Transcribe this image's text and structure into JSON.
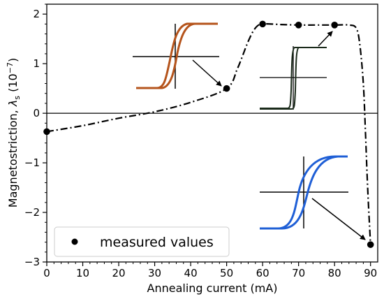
{
  "chart_data": {
    "type": "line",
    "xlabel": "Annealing current (mA)",
    "ylabel_main": "Magnetostriction, ",
    "ylabel_symbol": "λ",
    "ylabel_sub": "s",
    "ylabel_unit_open": " (10",
    "ylabel_unit_exp": "−7",
    "ylabel_unit_close": ")",
    "xlim": [
      0,
      92
    ],
    "ylim": [
      -3,
      2.2
    ],
    "xticks": [
      {
        "value": 0,
        "label": "0"
      },
      {
        "value": 10,
        "label": "10"
      },
      {
        "value": 20,
        "label": "20"
      },
      {
        "value": 30,
        "label": "30"
      },
      {
        "value": 40,
        "label": "40"
      },
      {
        "value": 50,
        "label": "50"
      },
      {
        "value": 60,
        "label": "60"
      },
      {
        "value": 70,
        "label": "70"
      },
      {
        "value": 80,
        "label": "80"
      },
      {
        "value": 90,
        "label": "90"
      }
    ],
    "yticks": [
      {
        "value": -3,
        "label": "−3"
      },
      {
        "value": -2,
        "label": "−2"
      },
      {
        "value": -1,
        "label": "−1"
      },
      {
        "value": 0,
        "label": "0"
      },
      {
        "value": 1,
        "label": "1"
      },
      {
        "value": 2,
        "label": "2"
      }
    ],
    "zero_line": true,
    "grid": false,
    "legend_position": "bottom-left",
    "series": [
      {
        "name": "measured values",
        "style": "markers",
        "color": "#000000",
        "points": [
          [
            0,
            -0.37
          ],
          [
            50,
            0.5
          ],
          [
            60,
            1.8
          ],
          [
            70,
            1.78
          ],
          [
            80,
            1.78
          ],
          [
            90,
            -2.65
          ]
        ]
      },
      {
        "style": "dash-dot",
        "color": "#000000",
        "points": [
          [
            0,
            -0.37
          ],
          [
            10,
            -0.25
          ],
          [
            20,
            -0.1
          ],
          [
            30,
            0.03
          ],
          [
            40,
            0.22
          ],
          [
            50,
            0.5
          ],
          [
            53,
            0.9
          ],
          [
            56,
            1.45
          ],
          [
            58,
            1.72
          ],
          [
            60,
            1.8
          ],
          [
            65,
            1.79
          ],
          [
            70,
            1.78
          ],
          [
            75,
            1.78
          ],
          [
            80,
            1.78
          ],
          [
            84,
            1.78
          ],
          [
            86,
            1.72
          ],
          [
            87,
            1.4
          ],
          [
            88,
            0.6
          ],
          [
            88.6,
            -0.4
          ],
          [
            89.2,
            -1.5
          ],
          [
            90,
            -2.65
          ]
        ]
      }
    ],
    "insets": [
      {
        "name": "brown-hysteresis-loop",
        "color": "#b5541c",
        "points_to": [
          50,
          0.5
        ]
      },
      {
        "name": "black-hysteresis-loop",
        "color": "#1a2a1a",
        "points_to": [
          80,
          1.78
        ]
      },
      {
        "name": "blue-hysteresis-loop",
        "color": "#1f5fd6",
        "points_to": [
          90,
          -2.65
        ]
      }
    ]
  }
}
